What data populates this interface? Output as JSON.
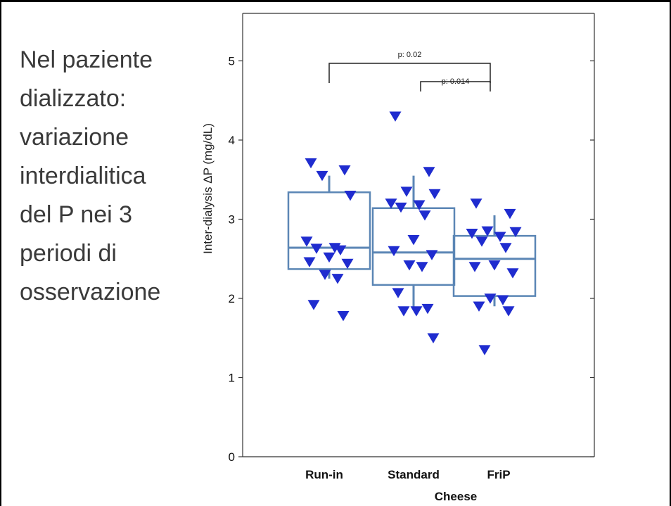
{
  "caption": {
    "lines": [
      "Nel paziente",
      "dializzato:",
      "variazione",
      "interdialitica",
      "del P nei 3",
      "periodi di",
      "osservazione"
    ]
  },
  "chart_data": {
    "type": "box-with-points",
    "ylabel": "Inter-dialysis ΔP (mg/dL)",
    "xlabel": "Cheese",
    "ylim": [
      0,
      5.6
    ],
    "yticks": [
      "0",
      "1",
      "2",
      "3",
      "4",
      "5"
    ],
    "categories": [
      "Run-in",
      "Standard",
      "FriP"
    ],
    "marker_color": "#1f2ccf",
    "box_color": "#5b86b5",
    "boxes": [
      {
        "name": "Run-in",
        "q1": 2.37,
        "median": 2.64,
        "q3": 3.34,
        "whisker_low": 2.25,
        "whisker_high": 3.55
      },
      {
        "name": "Standard",
        "q1": 2.17,
        "median": 2.58,
        "q3": 3.14,
        "whisker_low": 1.85,
        "whisker_high": 3.55
      },
      {
        "name": "FriP",
        "q1": 2.03,
        "median": 2.5,
        "q3": 2.79,
        "whisker_low": 1.9,
        "whisker_high": 3.05
      }
    ],
    "points": [
      {
        "category": "Run-in",
        "values": [
          3.71,
          3.62,
          3.55,
          3.3,
          2.72,
          2.64,
          2.63,
          2.61,
          2.52,
          2.46,
          2.44,
          2.3,
          2.25,
          1.92,
          1.78
        ]
      },
      {
        "category": "Standard",
        "values": [
          4.3,
          3.6,
          3.35,
          3.32,
          3.2,
          3.18,
          3.15,
          3.05,
          2.74,
          2.6,
          2.55,
          2.42,
          2.4,
          2.07,
          1.87,
          1.84,
          1.84,
          1.5
        ]
      },
      {
        "category": "FriP",
        "values": [
          3.2,
          3.07,
          2.85,
          2.84,
          2.82,
          2.78,
          2.72,
          2.64,
          2.42,
          2.4,
          2.32,
          2.0,
          1.98,
          1.9,
          1.84,
          1.35
        ]
      }
    ],
    "significance": [
      {
        "label": "p: 0.02",
        "from": "Run-in",
        "to": "FriP"
      },
      {
        "label": "p: 0.014",
        "from": "Standard",
        "to": "FriP"
      }
    ]
  }
}
